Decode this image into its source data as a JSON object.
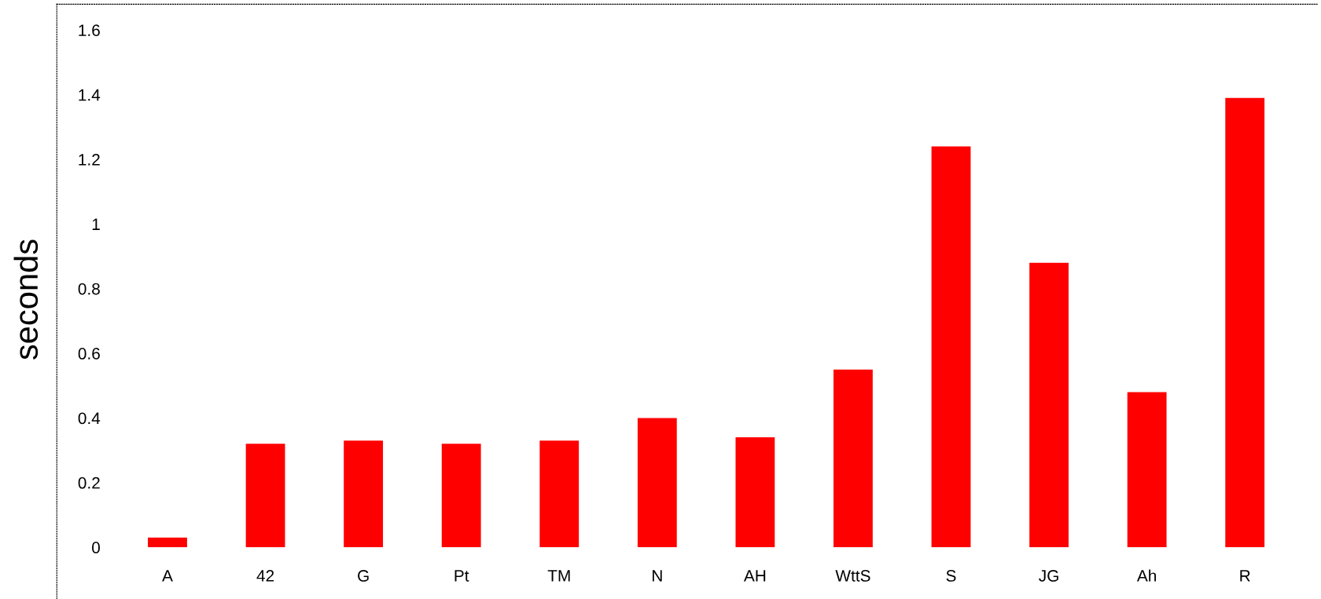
{
  "chart_data": {
    "type": "bar",
    "ylabel": "seconds",
    "categories": [
      "A",
      "42",
      "G",
      "Pt",
      "TM",
      "N",
      "AH",
      "WttS",
      "S",
      "JG",
      "Ah",
      "R"
    ],
    "values": [
      0.03,
      0.32,
      0.33,
      0.32,
      0.33,
      0.4,
      0.34,
      0.55,
      1.24,
      0.88,
      0.48,
      1.39
    ],
    "color": "#ff0000",
    "ylim": [
      -0.16,
      1.68
    ],
    "yticks": [
      0,
      0.2,
      0.4,
      0.6,
      0.8,
      1,
      1.2,
      1.4,
      1.6
    ],
    "grid": false
  }
}
